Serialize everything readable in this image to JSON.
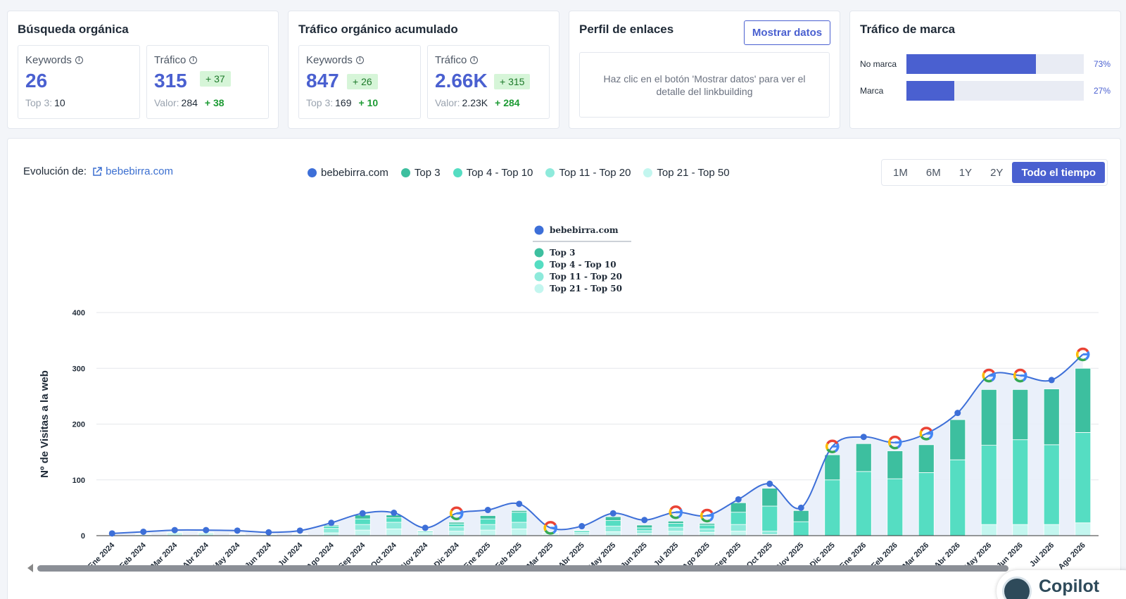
{
  "cards": {
    "organic": {
      "title": "Búsqueda orgánica",
      "keywords": {
        "label": "Keywords",
        "value": "26",
        "top3_label": "Top 3:",
        "top3_value": "10"
      },
      "traffic": {
        "label": "Tráfico",
        "value": "315",
        "delta": "+ 37",
        "valor_label": "Valor:",
        "valor_value": "284",
        "valor_delta": "+ 38"
      }
    },
    "accum": {
      "title": "Tráfico orgánico acumulado",
      "keywords": {
        "label": "Keywords",
        "value": "847",
        "delta": "+ 26",
        "top3_label": "Top 3:",
        "top3_value": "169",
        "top3_delta": "+ 10"
      },
      "traffic": {
        "label": "Tráfico",
        "value": "2.66K",
        "delta": "+ 315",
        "valor_label": "Valor:",
        "valor_value": "2.23K",
        "valor_delta": "+ 284"
      }
    },
    "links": {
      "title": "Perfil de enlaces",
      "button": "Mostrar datos",
      "message": "Haz clic en el botón 'Mostrar datos' para ver el detalle del linkbuilding"
    },
    "brand": {
      "title": "Tráfico de marca",
      "rows": [
        {
          "label": "No marca",
          "value": 73,
          "pct": "73%"
        },
        {
          "label": "Marca",
          "value": 27,
          "pct": "27%"
        }
      ]
    }
  },
  "main": {
    "evolution_label": "Evolución de:",
    "domain": "bebebirra.com",
    "legend": [
      {
        "label": "bebebirra.com",
        "color": "#3d6fd8"
      },
      {
        "label": "Top 3",
        "color": "#3dbf9f"
      },
      {
        "label": "Top 4 - Top 10",
        "color": "#55ddc2"
      },
      {
        "label": "Top 11 - Top 20",
        "color": "#8eeadb"
      },
      {
        "label": "Top 21 - Top 50",
        "color": "#c3f6ef"
      }
    ],
    "ranges": [
      {
        "label": "1M",
        "active": false
      },
      {
        "label": "6M",
        "active": false
      },
      {
        "label": "1Y",
        "active": false
      },
      {
        "label": "2Y",
        "active": false
      },
      {
        "label": "Todo el tiempo",
        "active": true
      }
    ]
  },
  "chart_data": {
    "type": "bar",
    "stacked": true,
    "ylabel": "Nº de Visitas a la web",
    "ylim": [
      0,
      400
    ],
    "yticks": [
      0,
      100,
      200,
      300,
      400
    ],
    "grid": true,
    "legend_placement": "top-center",
    "categories": [
      "Ene 2024",
      "Feb 2024",
      "Mar 2024",
      "Abr 2024",
      "May 2024",
      "Jun 2024",
      "Jul 2024",
      "Ago 2024",
      "Sep 2024",
      "Oct 2024",
      "Nov 2024",
      "Dic 2024",
      "Ene 2025",
      "Feb 2025",
      "Mar 2025",
      "Abr 2025",
      "May 2025",
      "Jun 2025",
      "Jul 2025",
      "Ago 2025",
      "Sep 2025",
      "Oct 2025",
      "Nov 2025",
      "Dic 2025",
      "Ene 2026",
      "Feb 2026",
      "Mar 2026",
      "Abr 2026",
      "May 2026",
      "Jun 2026",
      "Jul 2026",
      "Ago 2026"
    ],
    "series": [
      {
        "name": "Top 21 - Top 50",
        "color": "#c3f6ef",
        "values": [
          1,
          2,
          3,
          3,
          2,
          2,
          2,
          5,
          10,
          12,
          4,
          8,
          10,
          12,
          2,
          3,
          7,
          4,
          8,
          6,
          8,
          2,
          0,
          0,
          0,
          0,
          0,
          0,
          20,
          20,
          20,
          23
        ]
      },
      {
        "name": "Top 11 - Top 20",
        "color": "#8eeadb",
        "values": [
          0,
          1,
          2,
          2,
          1,
          1,
          1,
          8,
          10,
          12,
          2,
          8,
          10,
          12,
          2,
          3,
          10,
          5,
          7,
          6,
          12,
          6,
          0,
          0,
          0,
          0,
          0,
          0,
          0,
          0,
          0,
          0
        ]
      },
      {
        "name": "Top 4 - Top 10",
        "color": "#55ddc2",
        "values": [
          0,
          0,
          1,
          1,
          1,
          0,
          1,
          4,
          10,
          8,
          2,
          5,
          10,
          18,
          1,
          3,
          10,
          5,
          7,
          7,
          22,
          45,
          25,
          100,
          115,
          102,
          113,
          136,
          142,
          152,
          143,
          162
        ]
      },
      {
        "name": "Top 3",
        "color": "#3dbf9f",
        "values": [
          0,
          0,
          0,
          0,
          0,
          0,
          0,
          2,
          7,
          5,
          1,
          3,
          6,
          3,
          1,
          1,
          7,
          5,
          4,
          3,
          17,
          32,
          20,
          45,
          50,
          50,
          50,
          72,
          100,
          90,
          100,
          115
        ]
      }
    ],
    "line": {
      "name": "bebebirra.com",
      "color": "#3d6fd8",
      "values": [
        4,
        7,
        10,
        10,
        9,
        6,
        9,
        23,
        40,
        41,
        14,
        40,
        46,
        57,
        14,
        17,
        40,
        28,
        42,
        36,
        65,
        93,
        50,
        160,
        177,
        167,
        183,
        220,
        287,
        287,
        279,
        325
      ]
    },
    "google_markers": [
      "Dic 2024",
      "Mar 2025",
      "Jul 2025",
      "Ago 2025",
      "Dic 2025",
      "Feb 2026",
      "Mar 2026",
      "May 2026",
      "Jun 2026",
      "Ago 2026"
    ],
    "inner_legend": [
      {
        "label": "bebebirra.com",
        "color": "#3d6fd8"
      },
      {
        "label": "Top 3",
        "color": "#3dbf9f"
      },
      {
        "label": "Top 4 - Top 10",
        "color": "#55ddc2"
      },
      {
        "label": "Top 11 - Top 20",
        "color": "#8eeadb"
      },
      {
        "label": "Top 21 - Top 50",
        "color": "#c3f6ef"
      }
    ]
  },
  "copilot": {
    "label": "Copilot"
  },
  "icons": {
    "external": "external-link-icon",
    "info": "info-icon",
    "google": "google-icon",
    "scroll": "scroll-left-icon"
  }
}
